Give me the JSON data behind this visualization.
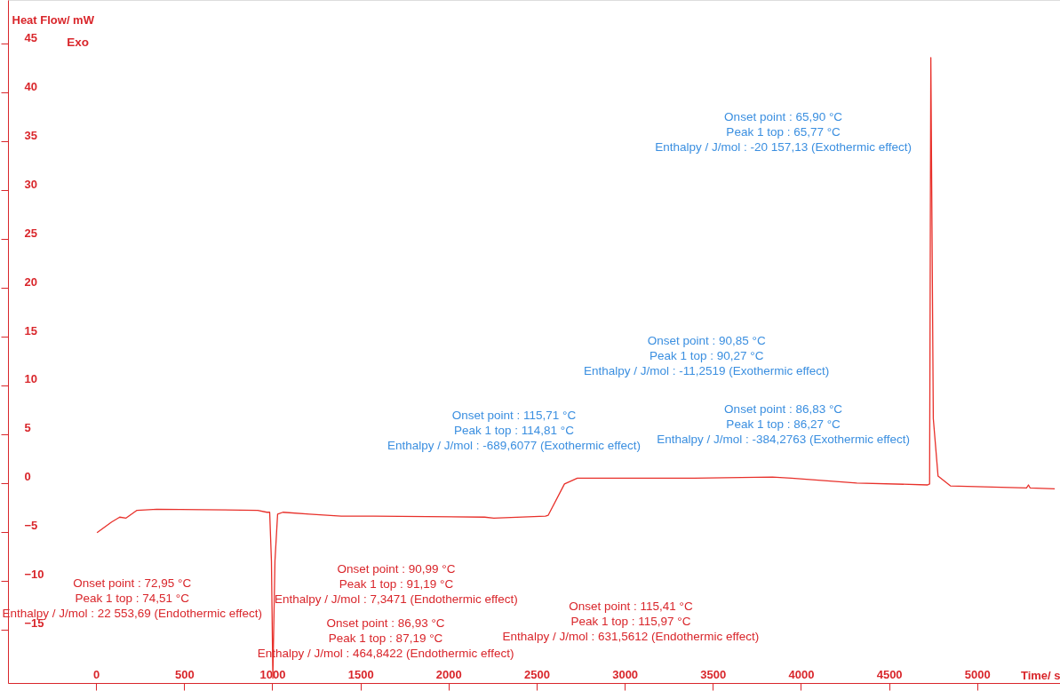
{
  "chart_data": {
    "type": "line",
    "xlabel": "Time/ s",
    "ylabel": "Heat Flow/ mW",
    "xlim": [
      -500,
      5470
    ],
    "ylim": [
      -20.5,
      49.5
    ],
    "xticks": [
      0,
      500,
      1000,
      1500,
      2000,
      2500,
      3000,
      3500,
      4000,
      4500,
      5000
    ],
    "yticks": [
      -15,
      -10,
      -5,
      0,
      5,
      10,
      15,
      20,
      25,
      30,
      35,
      40,
      45
    ],
    "line_style": "solid",
    "series": [
      {
        "color": "#e8302a",
        "x": [
          5,
          88,
          134,
          170,
          232,
          345,
          917,
          969,
          985,
          995,
          1003,
          1015,
          1030,
          1060,
          1211,
          1391,
          1577,
          2205,
          2257,
          2550,
          2566,
          2658,
          2731,
          2937,
          3395,
          3838,
          3946,
          4317,
          4719,
          4730,
          4737,
          4751,
          4778,
          4848,
          5280,
          5291,
          5300,
          5440
        ],
        "values": [
          -5.1,
          -4.0,
          -3.5,
          -3.6,
          -2.8,
          -2.7,
          -2.8,
          -3.0,
          -3.0,
          -8,
          -20,
          -8,
          -3.2,
          -3.0,
          -3.2,
          -3.4,
          -3.4,
          -3.5,
          -3.6,
          -3.4,
          -3.3,
          -0.1,
          0.5,
          0.5,
          0.5,
          0.6,
          0.5,
          0.0,
          -0.2,
          -0.1,
          43.6,
          6.6,
          0.7,
          -0.3,
          -0.5,
          -0.2,
          -0.5,
          -0.6
        ]
      }
    ],
    "annotations": [
      "Exo",
      "Onset point : 72,95  °C\nPeak 1 top : 74,51  °C\nEnthalpy / J/mol : 22 553,69 (Endothermic effect)",
      "Onset point : 90,99  °C\nPeak 1 top : 91,19  °C\nEnthalpy / J/mol : 7,3471 (Endothermic effect)",
      "Onset point : 86,93  °C\nPeak 1 top : 87,19  °C\nEnthalpy / J/mol : 464,8422 (Endothermic effect)",
      "Onset point : 115,41  °C\nPeak 1 top : 115,97  °C\nEnthalpy / J/mol : 631,5612 (Endothermic effect)",
      "Onset point : 115,71  °C\nPeak 1 top : 114,81  °C\nEnthalpy / J/mol : -689,6077 (Exothermic effect)",
      "Onset point : 90,85  °C\nPeak 1 top : 90,27  °C\nEnthalpy / J/mol : -11,2519 (Exothermic effect)",
      "Onset point : 86,83  °C\nPeak 1 top : 86,27  °C\nEnthalpy / J/mol : -384,2763 (Exothermic effect)",
      "Onset point : 65,90  °C\nPeak 1 top : 65,77  °C\nEnthalpy / J/mol : -20 157,13 (Exothermic effect)"
    ]
  }
}
